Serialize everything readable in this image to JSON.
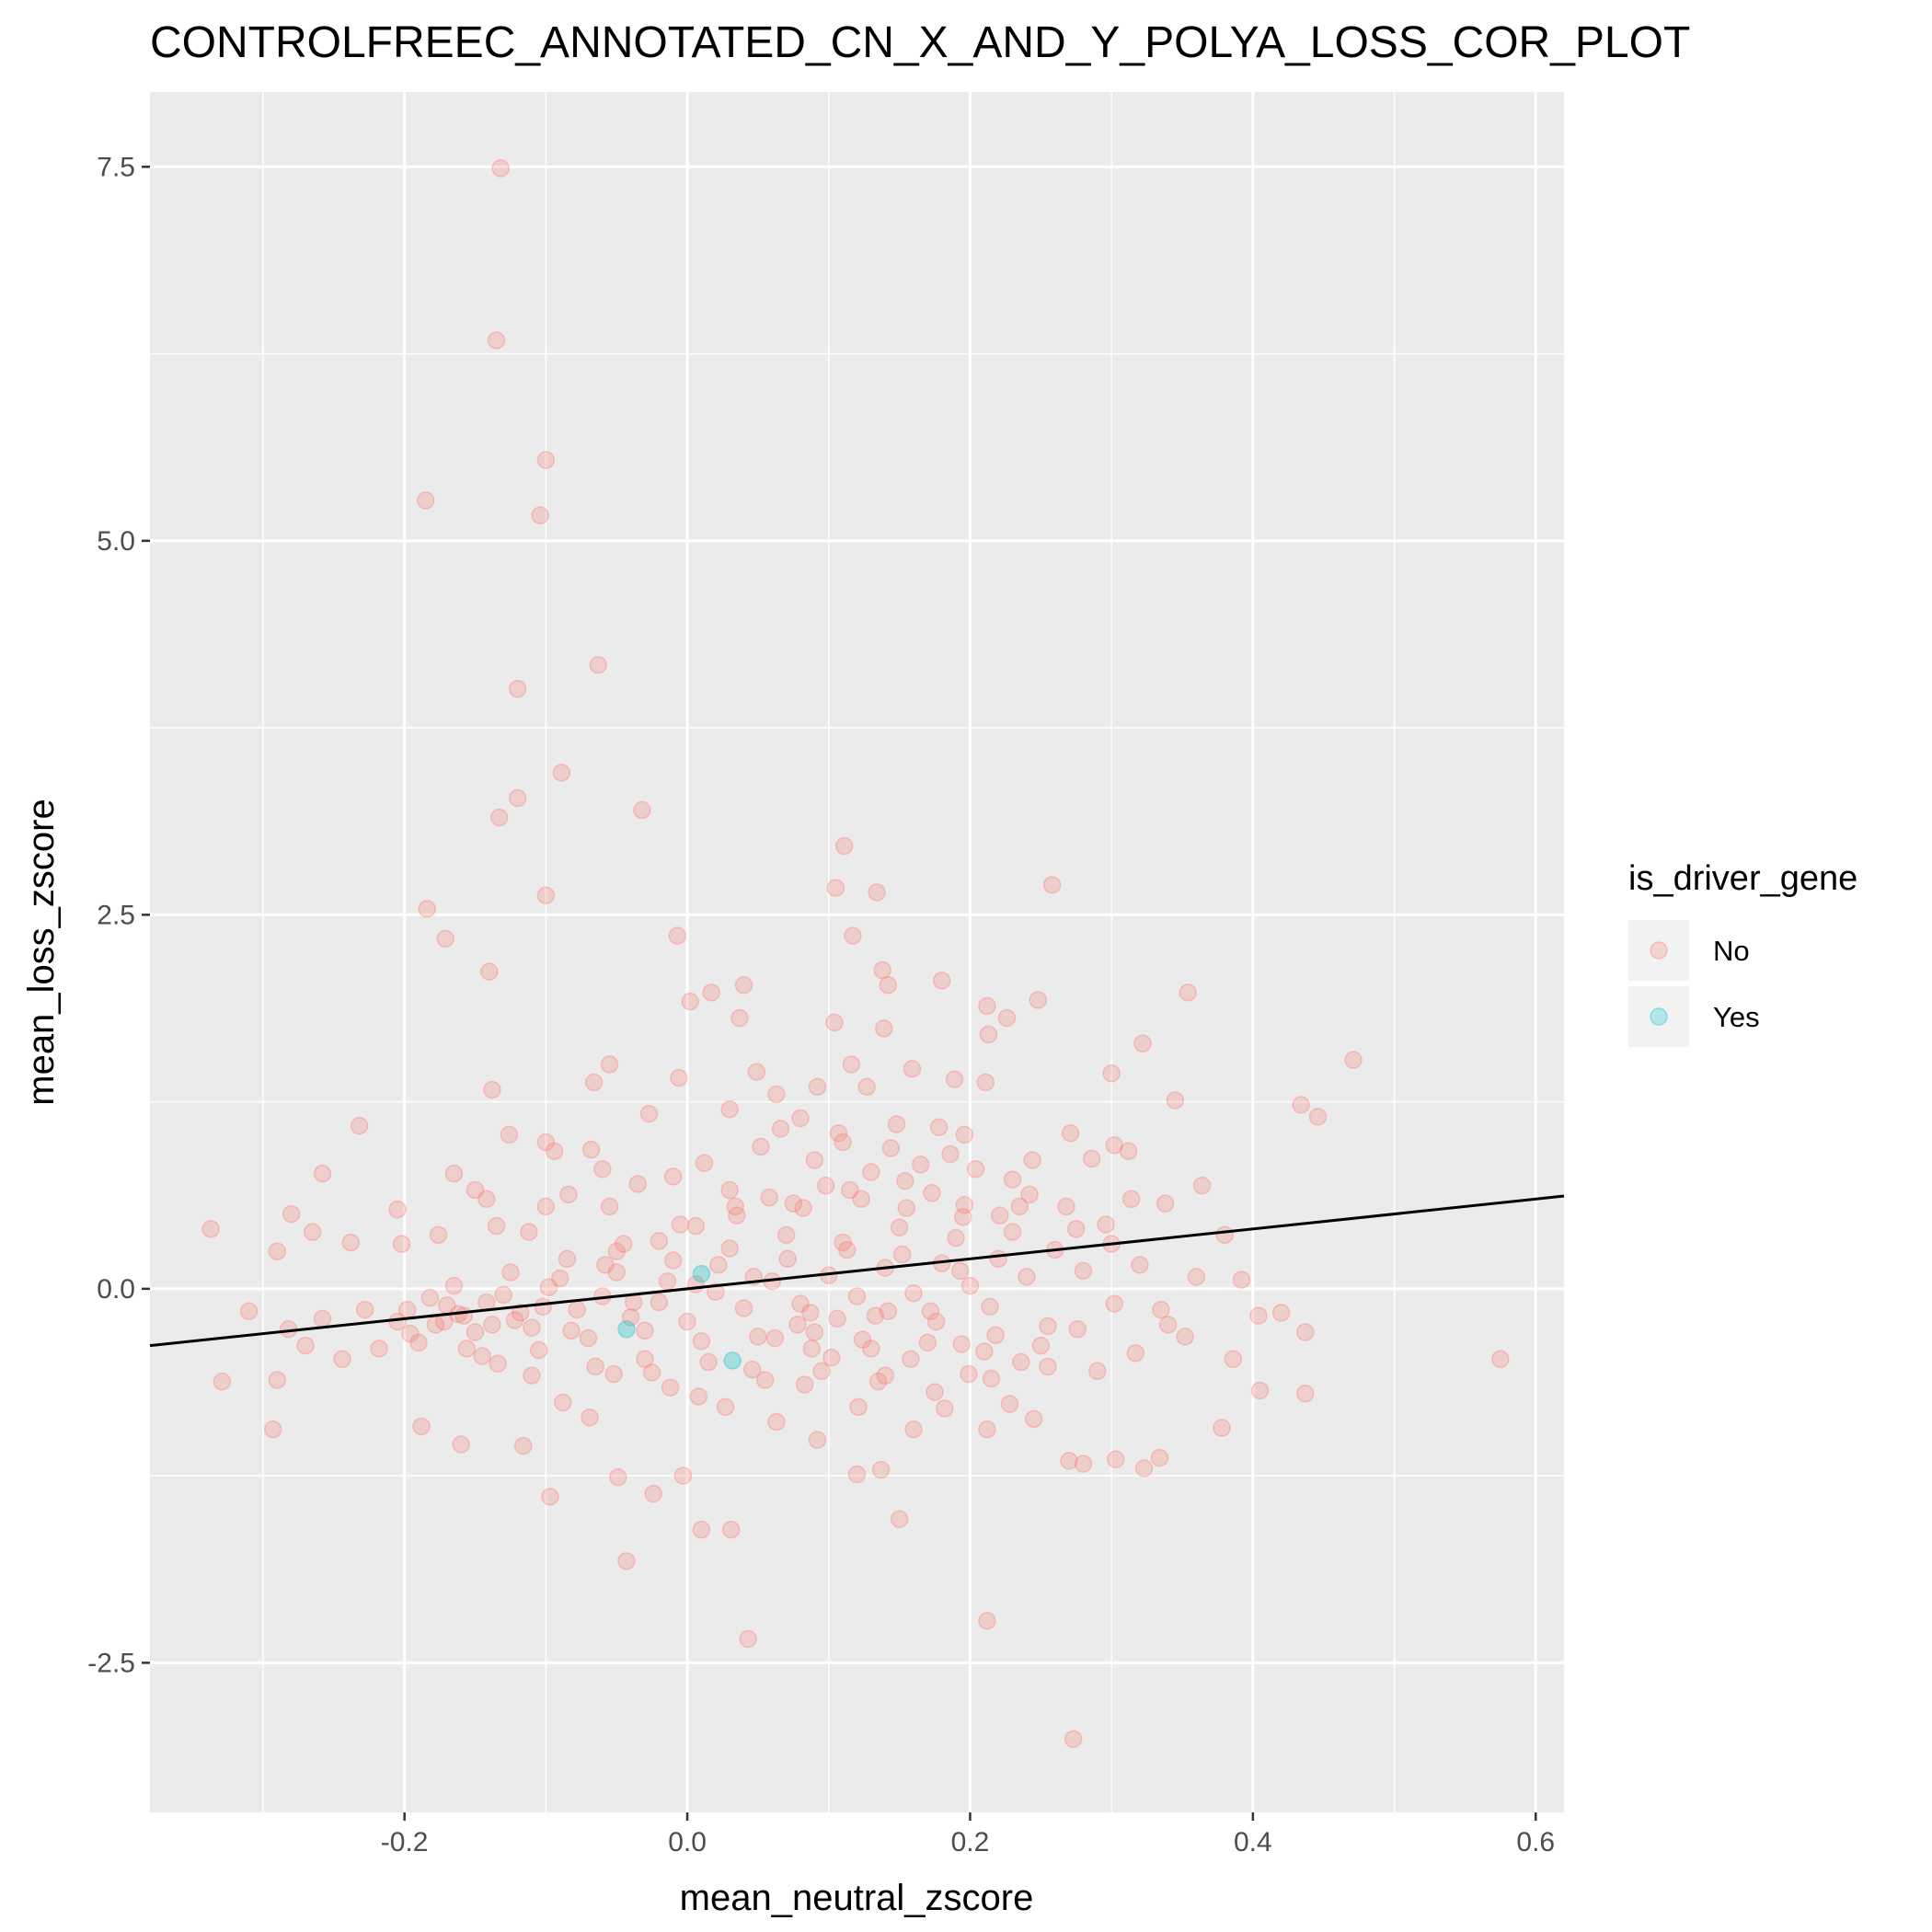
{
  "chart_data": {
    "type": "scatter",
    "title": "CONTROLFREEC_ANNOTATED_CN_X_AND_Y_POLYA_LOSS_COR_PLOT",
    "xlabel": "mean_neutral_zscore",
    "ylabel": "mean_loss_zscore",
    "xlim": [
      -0.38,
      0.62
    ],
    "ylim": [
      -3.5,
      8.0
    ],
    "x_ticks": [
      -0.2,
      0.0,
      0.2,
      0.4,
      0.6
    ],
    "x_tick_labels": [
      "-0.2",
      "0.0",
      "0.2",
      "0.4",
      "0.6"
    ],
    "y_ticks": [
      -2.5,
      0.0,
      2.5,
      5.0,
      7.5
    ],
    "y_tick_labels": [
      "-2.5",
      "0.0",
      "2.5",
      "5.0",
      "7.5"
    ],
    "grid": true,
    "legend": {
      "title": "is_driver_gene",
      "position": "right",
      "entries": [
        {
          "label": "No",
          "color": "#F8766D"
        },
        {
          "label": "Yes",
          "color": "#00BFC4"
        }
      ]
    },
    "regression_line": {
      "x": [
        -0.38,
        0.62
      ],
      "y": [
        -0.38,
        0.62
      ],
      "color": "#000000"
    },
    "series": [
      {
        "name": "No",
        "color": "#F8766D",
        "opacity": 0.25,
        "points": [
          [
            -0.132,
            7.49
          ],
          [
            -0.135,
            6.34
          ],
          [
            -0.1,
            5.54
          ],
          [
            -0.185,
            5.27
          ],
          [
            -0.104,
            5.17
          ],
          [
            -0.063,
            4.17
          ],
          [
            -0.12,
            4.01
          ],
          [
            -0.089,
            3.45
          ],
          [
            -0.12,
            3.28
          ],
          [
            -0.133,
            3.15
          ],
          [
            -0.032,
            3.2
          ],
          [
            -0.184,
            2.54
          ],
          [
            -0.1,
            2.63
          ],
          [
            -0.171,
            2.34
          ],
          [
            -0.14,
            2.12
          ],
          [
            0.111,
            2.96
          ],
          [
            0.105,
            2.68
          ],
          [
            0.134,
            2.65
          ],
          [
            0.258,
            2.7
          ],
          [
            0.117,
            2.36
          ],
          [
            -0.007,
            2.36
          ],
          [
            0.04,
            2.03
          ],
          [
            0.017,
            1.98
          ],
          [
            0.138,
            2.13
          ],
          [
            0.142,
            2.03
          ],
          [
            0.18,
            2.06
          ],
          [
            0.354,
            1.98
          ],
          [
            0.212,
            1.89
          ],
          [
            0.248,
            1.93
          ],
          [
            0.226,
            1.81
          ],
          [
            0.002,
            1.92
          ],
          [
            0.037,
            1.81
          ],
          [
            0.104,
            1.78
          ],
          [
            0.139,
            1.74
          ],
          [
            0.213,
            1.7
          ],
          [
            0.322,
            1.64
          ],
          [
            0.471,
            1.53
          ],
          [
            0.3,
            1.44
          ],
          [
            0.049,
            1.45
          ],
          [
            -0.055,
            1.5
          ],
          [
            -0.066,
            1.38
          ],
          [
            0.116,
            1.5
          ],
          [
            0.159,
            1.47
          ],
          [
            -0.138,
            1.33
          ],
          [
            0.345,
            1.26
          ],
          [
            0.434,
            1.23
          ],
          [
            0.446,
            1.15
          ],
          [
            0.211,
            1.38
          ],
          [
            0.189,
            1.4
          ],
          [
            -0.006,
            1.41
          ],
          [
            0.063,
            1.3
          ],
          [
            0.092,
            1.35
          ],
          [
            0.127,
            1.35
          ],
          [
            -0.232,
            1.09
          ],
          [
            -0.126,
            1.03
          ],
          [
            -0.1,
            0.98
          ],
          [
            -0.094,
            0.92
          ],
          [
            -0.068,
            0.93
          ],
          [
            -0.027,
            1.17
          ],
          [
            0.03,
            1.2
          ],
          [
            0.08,
            1.14
          ],
          [
            0.107,
            1.04
          ],
          [
            0.148,
            1.1
          ],
          [
            0.178,
            1.08
          ],
          [
            0.196,
            1.03
          ],
          [
            0.271,
            1.04
          ],
          [
            0.302,
            0.96
          ],
          [
            0.312,
            0.92
          ],
          [
            0.286,
            0.87
          ],
          [
            0.244,
            0.86
          ],
          [
            -0.258,
            0.77
          ],
          [
            -0.165,
            0.77
          ],
          [
            -0.15,
            0.66
          ],
          [
            -0.142,
            0.6
          ],
          [
            -0.1,
            0.55
          ],
          [
            -0.084,
            0.63
          ],
          [
            -0.055,
            0.55
          ],
          [
            -0.205,
            0.53
          ],
          [
            -0.28,
            0.5
          ],
          [
            -0.265,
            0.38
          ],
          [
            -0.337,
            0.4
          ],
          [
            -0.29,
            0.25
          ],
          [
            -0.238,
            0.31
          ],
          [
            -0.202,
            0.3
          ],
          [
            -0.176,
            0.36
          ],
          [
            -0.135,
            0.42
          ],
          [
            -0.112,
            0.38
          ],
          [
            -0.05,
            0.25
          ],
          [
            -0.02,
            0.32
          ],
          [
            0.006,
            0.42
          ],
          [
            0.034,
            0.55
          ],
          [
            0.058,
            0.61
          ],
          [
            0.082,
            0.54
          ],
          [
            0.098,
            0.69
          ],
          [
            0.123,
            0.6
          ],
          [
            0.154,
            0.72
          ],
          [
            0.173,
            0.64
          ],
          [
            0.196,
            0.56
          ],
          [
            0.221,
            0.49
          ],
          [
            0.242,
            0.63
          ],
          [
            0.268,
            0.55
          ],
          [
            0.296,
            0.43
          ],
          [
            0.314,
            0.6
          ],
          [
            0.338,
            0.57
          ],
          [
            0.364,
            0.69
          ],
          [
            0.38,
            0.36
          ],
          [
            0.392,
            0.06
          ],
          [
            0.404,
            -0.18
          ],
          [
            0.42,
            -0.16
          ],
          [
            0.437,
            -0.29
          ],
          [
            0.405,
            -0.68
          ],
          [
            0.437,
            -0.7
          ],
          [
            0.575,
            -0.47
          ],
          [
            0.386,
            -0.47
          ],
          [
            0.378,
            -0.93
          ],
          [
            0.352,
            -0.32
          ],
          [
            0.335,
            -0.14
          ],
          [
            0.317,
            -0.43
          ],
          [
            0.302,
            -0.1
          ],
          [
            0.29,
            -0.55
          ],
          [
            0.276,
            -0.27
          ],
          [
            0.27,
            -1.15
          ],
          [
            0.28,
            -1.17
          ],
          [
            0.323,
            -1.2
          ],
          [
            0.334,
            -1.13
          ],
          [
            0.303,
            -1.14
          ],
          [
            0.245,
            -0.87
          ],
          [
            0.228,
            -0.77
          ],
          [
            0.212,
            -0.94
          ],
          [
            0.212,
            -2.22
          ],
          [
            0.273,
            -3.01
          ],
          [
            0.15,
            -1.54
          ],
          [
            0.137,
            -1.21
          ],
          [
            0.12,
            -1.24
          ],
          [
            0.092,
            -1.01
          ],
          [
            0.043,
            -2.34
          ],
          [
            0.01,
            -1.61
          ],
          [
            0.031,
            -1.61
          ],
          [
            -0.003,
            -1.25
          ],
          [
            -0.043,
            -1.82
          ],
          [
            -0.024,
            -1.37
          ],
          [
            -0.049,
            -1.26
          ],
          [
            -0.097,
            -1.39
          ],
          [
            -0.116,
            -1.05
          ],
          [
            -0.16,
            -1.04
          ],
          [
            -0.188,
            -0.92
          ],
          [
            -0.293,
            -0.94
          ],
          [
            -0.329,
            -0.62
          ],
          [
            -0.29,
            -0.61
          ],
          [
            -0.27,
            -0.38
          ],
          [
            -0.244,
            -0.47
          ],
          [
            -0.218,
            -0.4
          ],
          [
            -0.196,
            -0.3
          ],
          [
            -0.172,
            -0.22
          ],
          [
            -0.156,
            -0.4
          ],
          [
            -0.134,
            -0.5
          ],
          [
            -0.11,
            -0.58
          ],
          [
            -0.088,
            -0.76
          ],
          [
            -0.069,
            -0.86
          ],
          [
            -0.052,
            -0.57
          ],
          [
            -0.03,
            -0.47
          ],
          [
            -0.012,
            -0.66
          ],
          [
            0.008,
            -0.72
          ],
          [
            0.027,
            -0.79
          ],
          [
            0.046,
            -0.54
          ],
          [
            0.063,
            -0.89
          ],
          [
            0.083,
            -0.64
          ],
          [
            0.102,
            -0.46
          ],
          [
            0.121,
            -0.79
          ],
          [
            0.14,
            -0.58
          ],
          [
            0.16,
            -0.94
          ],
          [
            0.182,
            -0.8
          ],
          [
            0.199,
            -0.57
          ],
          [
            0.218,
            -0.31
          ],
          [
            0.236,
            -0.49
          ],
          [
            0.255,
            -0.25
          ],
          [
            -0.31,
            -0.15
          ],
          [
            -0.282,
            -0.27
          ],
          [
            -0.258,
            -0.2
          ],
          [
            -0.228,
            -0.14
          ],
          [
            -0.205,
            -0.22
          ],
          [
            -0.182,
            -0.06
          ],
          [
            -0.162,
            -0.17
          ],
          [
            -0.142,
            -0.09
          ],
          [
            -0.122,
            -0.21
          ],
          [
            -0.102,
            -0.12
          ],
          [
            -0.082,
            -0.28
          ],
          [
            -0.06,
            -0.05
          ],
          [
            -0.04,
            -0.19
          ],
          [
            -0.02,
            -0.09
          ],
          [
            0.0,
            -0.22
          ],
          [
            0.02,
            -0.02
          ],
          [
            0.04,
            -0.13
          ],
          [
            0.06,
            0.05
          ],
          [
            0.08,
            -0.1
          ],
          [
            0.1,
            0.09
          ],
          [
            0.12,
            -0.05
          ],
          [
            0.14,
            0.14
          ],
          [
            0.16,
            -0.03
          ],
          [
            0.18,
            0.17
          ],
          [
            0.2,
            0.02
          ],
          [
            0.22,
            0.2
          ],
          [
            0.24,
            0.08
          ],
          [
            0.26,
            0.26
          ],
          [
            0.28,
            0.12
          ],
          [
            0.3,
            0.3
          ],
          [
            0.32,
            0.16
          ],
          [
            0.34,
            -0.24
          ],
          [
            0.36,
            0.08
          ],
          [
            -0.17,
            -0.11
          ],
          [
            -0.15,
            -0.29
          ],
          [
            -0.13,
            -0.04
          ],
          [
            -0.11,
            -0.26
          ],
          [
            -0.09,
            0.07
          ],
          [
            -0.07,
            -0.33
          ],
          [
            -0.05,
            0.11
          ],
          [
            -0.03,
            -0.28
          ],
          [
            -0.01,
            0.19
          ],
          [
            0.01,
            -0.35
          ],
          [
            0.03,
            0.27
          ],
          [
            0.05,
            -0.32
          ],
          [
            0.07,
            0.36
          ],
          [
            0.09,
            -0.29
          ],
          [
            0.11,
            0.31
          ],
          [
            0.13,
            -0.4
          ],
          [
            0.15,
            0.41
          ],
          [
            0.17,
            -0.36
          ],
          [
            0.19,
            0.34
          ],
          [
            0.21,
            -0.42
          ],
          [
            0.23,
            0.38
          ],
          [
            0.25,
            -0.38
          ],
          [
            -0.19,
            -0.36
          ],
          [
            -0.165,
            0.02
          ],
          [
            -0.145,
            -0.45
          ],
          [
            -0.125,
            0.11
          ],
          [
            -0.105,
            -0.41
          ],
          [
            -0.085,
            0.2
          ],
          [
            -0.065,
            -0.52
          ],
          [
            -0.045,
            0.3
          ],
          [
            -0.025,
            -0.56
          ],
          [
            -0.005,
            0.43
          ],
          [
            0.015,
            -0.49
          ],
          [
            0.035,
            0.49
          ],
          [
            0.055,
            -0.61
          ],
          [
            0.075,
            0.57
          ],
          [
            0.095,
            -0.55
          ],
          [
            0.115,
            0.66
          ],
          [
            0.135,
            -0.62
          ],
          [
            0.155,
            0.54
          ],
          [
            0.175,
            -0.69
          ],
          [
            0.195,
            0.48
          ],
          [
            0.215,
            -0.6
          ],
          [
            0.235,
            0.55
          ],
          [
            0.255,
            -0.52
          ],
          [
            0.275,
            0.4
          ],
          [
            0.006,
            0.03
          ],
          [
            0.022,
            0.16
          ],
          [
            0.047,
            0.08
          ],
          [
            0.071,
            0.2
          ],
          [
            0.087,
            -0.16
          ],
          [
            0.113,
            0.26
          ],
          [
            0.133,
            -0.18
          ],
          [
            0.152,
            0.23
          ],
          [
            0.172,
            -0.15
          ],
          [
            0.193,
            0.12
          ],
          [
            -0.014,
            0.05
          ],
          [
            -0.038,
            -0.09
          ],
          [
            -0.058,
            0.16
          ],
          [
            -0.078,
            -0.14
          ],
          [
            -0.098,
            0.01
          ],
          [
            -0.118,
            -0.16
          ],
          [
            -0.138,
            -0.24
          ],
          [
            -0.158,
            -0.18
          ],
          [
            -0.178,
            -0.24
          ],
          [
            -0.198,
            -0.14
          ],
          [
            0.052,
            0.95
          ],
          [
            0.066,
            1.07
          ],
          [
            0.09,
            0.86
          ],
          [
            0.11,
            0.98
          ],
          [
            0.13,
            0.78
          ],
          [
            0.144,
            0.94
          ],
          [
            0.165,
            0.83
          ],
          [
            0.186,
            0.9
          ],
          [
            0.204,
            0.8
          ],
          [
            0.23,
            0.73
          ],
          [
            -0.01,
            0.75
          ],
          [
            0.012,
            0.84
          ],
          [
            -0.035,
            0.7
          ],
          [
            -0.06,
            0.8
          ],
          [
            0.03,
            0.66
          ],
          [
            0.062,
            -0.33
          ],
          [
            0.078,
            -0.24
          ],
          [
            0.088,
            -0.4
          ],
          [
            0.106,
            -0.2
          ],
          [
            0.124,
            -0.34
          ],
          [
            0.142,
            -0.15
          ],
          [
            0.158,
            -0.47
          ],
          [
            0.176,
            -0.22
          ],
          [
            0.194,
            -0.37
          ],
          [
            0.214,
            -0.12
          ]
        ]
      },
      {
        "name": "Yes",
        "color": "#00BFC4",
        "opacity": 0.3,
        "points": [
          [
            -0.043,
            -0.27
          ],
          [
            0.032,
            -0.48
          ],
          [
            0.01,
            0.1
          ]
        ]
      }
    ]
  }
}
